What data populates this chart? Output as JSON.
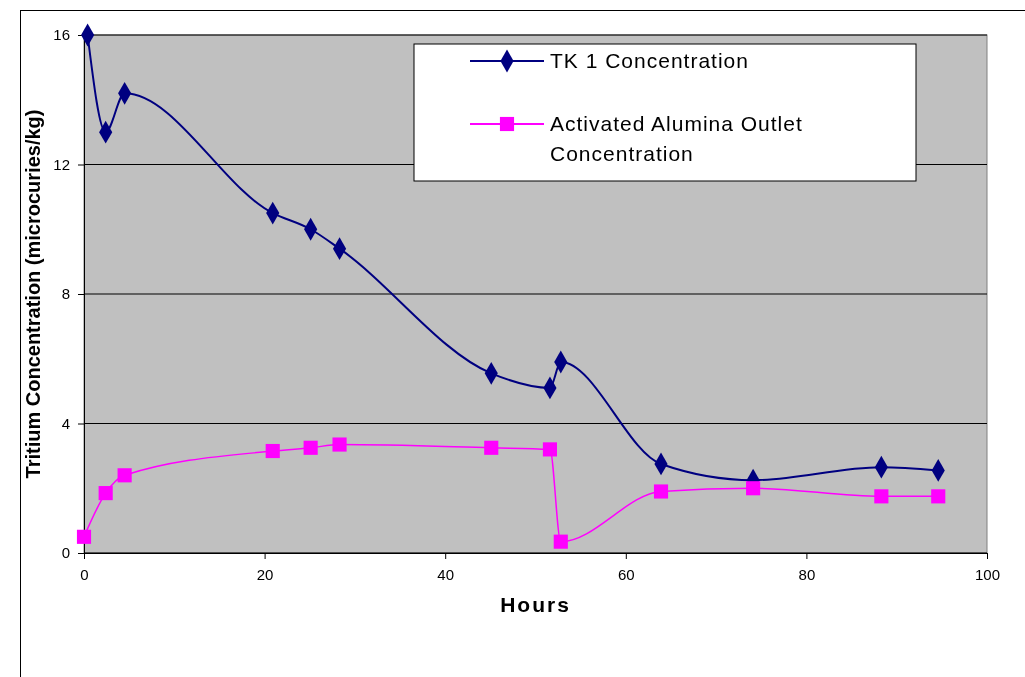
{
  "chart_data": {
    "type": "line",
    "xlabel": "Hours",
    "ylabel": "Tritium Concentration (microcuries/kg)",
    "xlim": [
      0,
      100
    ],
    "xticks": [
      0,
      20,
      40,
      60,
      80,
      100
    ],
    "ylim": [
      0,
      16
    ],
    "yticks": [
      0,
      4,
      8,
      12,
      16
    ],
    "grid": "y",
    "legend": "top right",
    "line_style": "solid",
    "series": [
      {
        "name": "TK 1 Concentration",
        "color": "#000080",
        "marker": "diamond",
        "x": [
          0.4,
          2.4,
          4.5,
          20.9,
          25.1,
          28.3,
          45.1,
          51.6,
          52.8,
          63.9,
          74.1,
          88.3,
          94.6
        ],
        "values": [
          16,
          13.0,
          14.2,
          10.5,
          10.0,
          9.4,
          5.55,
          5.1,
          5.9,
          2.75,
          2.25,
          2.65,
          2.55
        ]
      },
      {
        "name": "Activated Alumina Outlet Concentration",
        "color": "#ff00ff",
        "marker": "square",
        "x": [
          0,
          2.4,
          4.5,
          20.9,
          25.1,
          28.3,
          45.1,
          51.6,
          52.8,
          63.9,
          74.1,
          88.3,
          94.6
        ],
        "values": [
          0.5,
          1.85,
          2.4,
          3.15,
          3.25,
          3.35,
          3.25,
          3.2,
          0.35,
          1.9,
          2.0,
          1.75,
          1.75
        ]
      }
    ]
  }
}
